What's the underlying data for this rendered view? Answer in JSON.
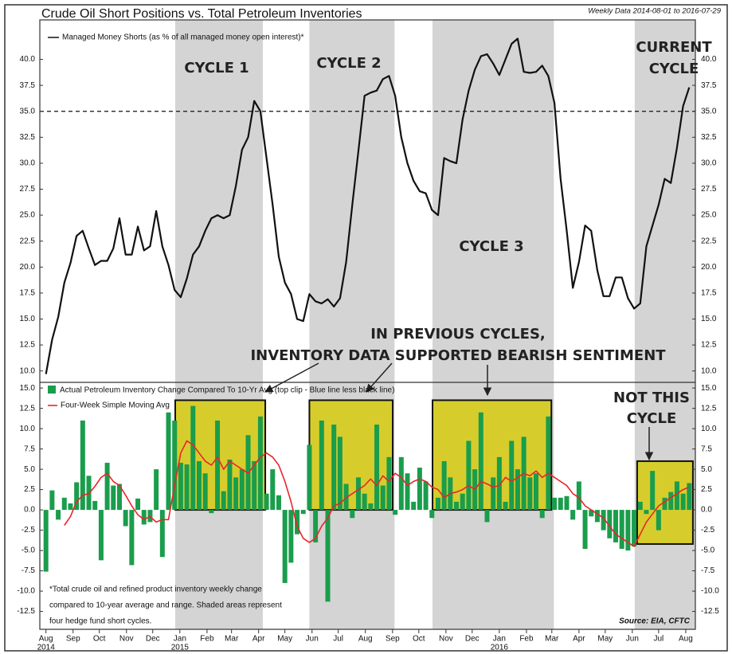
{
  "chart_data": [
    {
      "type": "line",
      "title": "Crude Oil Short Positions vs. Total Petroleum Inventories",
      "subtitle": "Weekly Data 2014-08-01 to 2016-07-29",
      "x": [
        0,
        1,
        2,
        3,
        4,
        5,
        6,
        7,
        8,
        9,
        10,
        11,
        12,
        13,
        14,
        15,
        16,
        17,
        18,
        19,
        20,
        21,
        22,
        23,
        24,
        25,
        26,
        27,
        28,
        29,
        30,
        31,
        32,
        33,
        34,
        35,
        36,
        37,
        38,
        39,
        40,
        41,
        42,
        43,
        44,
        45,
        46,
        47,
        48,
        49,
        50,
        51,
        52,
        53,
        54,
        55,
        56,
        57,
        58,
        59,
        60,
        61,
        62,
        63,
        64,
        65,
        66,
        67,
        68,
        69,
        70,
        71,
        72,
        73,
        74,
        75,
        76,
        77,
        78,
        79,
        80,
        81,
        82,
        83,
        84,
        85,
        86,
        87,
        88,
        89,
        90,
        91,
        92,
        93,
        94,
        95,
        96,
        97,
        98,
        99,
        100,
        101,
        102,
        103,
        104,
        105
      ],
      "xlim": [
        -1,
        106
      ],
      "ylim": [
        8.9,
        43.8
      ],
      "yticks": [
        {
          "value": 10,
          "label": "10.0"
        },
        12.5,
        {
          "value": 15,
          "label": "15.0"
        },
        17.5,
        {
          "value": 20,
          "label": "20.0"
        },
        22.5,
        {
          "value": 25,
          "label": "25.0"
        },
        27.5,
        {
          "value": 30,
          "label": "30.0"
        },
        32.5,
        {
          "value": 35,
          "label": "35.0"
        },
        37.5,
        {
          "value": 40,
          "label": "40.0"
        }
      ],
      "ref_line": 35,
      "shaded_x_ranges": [
        [
          21.1,
          35.4
        ],
        [
          43,
          56.9
        ],
        [
          63.1,
          82.9
        ],
        [
          96.1,
          106
        ]
      ],
      "series": [
        {
          "name": "Managed Money Shorts (as % of all managed money open interest)*",
          "color": "#111111",
          "values": [
            9.7,
            13.0,
            15.2,
            18.5,
            20.4,
            23.0,
            23.5,
            21.8,
            20.2,
            20.6,
            20.6,
            21.8,
            24.7,
            21.2,
            21.2,
            23.9,
            21.6,
            22.0,
            25.4,
            22.0,
            20.2,
            17.8,
            17.1,
            18.9,
            21.2,
            22.0,
            23.5,
            24.7,
            25.0,
            24.7,
            25.0,
            27.8,
            31.3,
            32.5,
            36.0,
            35.0,
            30.5,
            26.0,
            21.0,
            18.5,
            17.4,
            15.0,
            14.8,
            17.4,
            16.7,
            16.5,
            16.9,
            16.2,
            17.0,
            20.5,
            26.0,
            31.2,
            36.5,
            36.8,
            37.0,
            38.1,
            38.4,
            36.5,
            32.5,
            30.0,
            28.3,
            27.3,
            27.1,
            25.5,
            25.0,
            30.5,
            30.2,
            30.0,
            34.2,
            37.0,
            39.0,
            40.3,
            40.5,
            39.6,
            38.5,
            40.0,
            41.5,
            42.0,
            38.8,
            38.7,
            38.8,
            39.4,
            38.4,
            35.8,
            28.5,
            23.5,
            18.0,
            20.5,
            24.0,
            23.5,
            19.7,
            17.2,
            17.2,
            19.0,
            19.0,
            17.0,
            16.0,
            16.5,
            22.0,
            24.0,
            26.0,
            28.5,
            28.1,
            31.5,
            35.5,
            37.3
          ]
        }
      ],
      "annotations": [
        "CYCLE 1",
        "CYCLE 2",
        "CYCLE 3",
        "CURRENT",
        "CYCLE"
      ]
    },
    {
      "type": "bar",
      "x": [
        0,
        1,
        2,
        3,
        4,
        5,
        6,
        7,
        8,
        9,
        10,
        11,
        12,
        13,
        14,
        15,
        16,
        17,
        18,
        19,
        20,
        21,
        22,
        23,
        24,
        25,
        26,
        27,
        28,
        29,
        30,
        31,
        32,
        33,
        34,
        35,
        36,
        37,
        38,
        39,
        40,
        41,
        42,
        43,
        44,
        45,
        46,
        47,
        48,
        49,
        50,
        51,
        52,
        53,
        54,
        55,
        56,
        57,
        58,
        59,
        60,
        61,
        62,
        63,
        64,
        65,
        66,
        67,
        68,
        69,
        70,
        71,
        72,
        73,
        74,
        75,
        76,
        77,
        78,
        79,
        80,
        81,
        82,
        83,
        84,
        85,
        86,
        87,
        88,
        89,
        90,
        91,
        92,
        93,
        94,
        95,
        96,
        97,
        98,
        99,
        100,
        101,
        102,
        103,
        104,
        105
      ],
      "xlim": [
        -1,
        106
      ],
      "xticks": [
        {
          "value": 0,
          "label": "Aug"
        },
        {
          "value": 4.43,
          "label": "Sep"
        },
        {
          "value": 8.71,
          "label": "Oct"
        },
        {
          "value": 13.14,
          "label": "Nov"
        },
        {
          "value": 17.43,
          "label": "Dec"
        },
        {
          "value": 21.86,
          "label": "Jan"
        },
        {
          "value": 26.29,
          "label": "Feb"
        },
        {
          "value": 30.29,
          "label": "Mar"
        },
        {
          "value": 34.71,
          "label": "Apr"
        },
        {
          "value": 39,
          "label": "May"
        },
        {
          "value": 43.43,
          "label": "Jun"
        },
        {
          "value": 47.71,
          "label": "Jul"
        },
        {
          "value": 52.14,
          "label": "Aug"
        },
        {
          "value": 56.57,
          "label": "Sep"
        },
        {
          "value": 60.86,
          "label": "Oct"
        },
        {
          "value": 65.29,
          "label": "Nov"
        },
        {
          "value": 69.57,
          "label": "Dec"
        },
        {
          "value": 74,
          "label": "Jan"
        },
        {
          "value": 78.43,
          "label": "Feb"
        },
        {
          "value": 82.57,
          "label": "Mar"
        },
        {
          "value": 87,
          "label": "Apr"
        },
        {
          "value": 91.29,
          "label": "May"
        },
        {
          "value": 95.71,
          "label": "Jun"
        },
        {
          "value": 100,
          "label": "Jul"
        },
        {
          "value": 104.43,
          "label": "Aug"
        }
      ],
      "year_labels": [
        {
          "value": 0,
          "label": "2014"
        },
        {
          "value": 21.86,
          "label": "2015"
        },
        {
          "value": 74,
          "label": "2016"
        }
      ],
      "ylim": [
        -14.7,
        15.7
      ],
      "yticks": [
        {
          "value": 15,
          "label": "15.0"
        },
        12.5,
        {
          "value": 10,
          "label": "10.0"
        },
        7.5,
        {
          "value": 5,
          "label": "5.0"
        },
        2.5,
        {
          "value": 0,
          "label": "0.0"
        },
        -2.5,
        {
          "value": -5,
          "label": "-5.0"
        },
        -7.5,
        {
          "value": -10,
          "label": "-10.0"
        },
        -12.5
      ],
      "boxes": [
        {
          "x": [
            21.1,
            35.8
          ],
          "y": [
            0,
            13.5
          ]
        },
        {
          "x": [
            43,
            56.6
          ],
          "y": [
            0,
            13.5
          ]
        },
        {
          "x": [
            63.1,
            82.5
          ],
          "y": [
            0,
            13.5
          ]
        },
        {
          "x": [
            96.5,
            105.6
          ],
          "y": [
            -4.2,
            6.0
          ]
        }
      ],
      "series": [
        {
          "name": "Actual Petroleum Inventory Change Compared To 10-Yr Avg (top clip - Blue line less black line)",
          "type": "bar",
          "color": "#1a9d4c",
          "values": [
            -7.6,
            2.4,
            -1.2,
            1.5,
            0.8,
            3.4,
            11.0,
            4.2,
            1.1,
            -6.2,
            5.8,
            3.0,
            3.2,
            -2.0,
            -6.8,
            1.4,
            -1.8,
            -1.5,
            5.0,
            -5.8,
            12.0,
            11.0,
            5.8,
            5.6,
            12.8,
            6.0,
            4.5,
            -0.4,
            11.0,
            2.3,
            6.2,
            4.0,
            5.0,
            9.2,
            6.0,
            11.5,
            2.0,
            5.0,
            1.8,
            -9.0,
            -6.5,
            -3.0,
            -0.5,
            8.0,
            -4.0,
            11.0,
            -11.3,
            10.5,
            9.0,
            3.2,
            -1.0,
            4.0,
            2.0,
            0.8,
            10.5,
            3.0,
            6.5,
            -0.6,
            6.5,
            4.5,
            1.0,
            5.2,
            3.5,
            -1.0,
            1.5,
            6.0,
            4.0,
            1.0,
            2.0,
            8.5,
            5.0,
            12.0,
            -1.5,
            4.0,
            6.5,
            1.0,
            8.5,
            5.0,
            9.0,
            4.0,
            4.5,
            -1.0,
            11.5,
            1.5,
            1.5,
            1.7,
            -1.2,
            3.5,
            -4.8,
            -0.8,
            -1.5,
            -2.5,
            -3.5,
            -4.0,
            -4.8,
            -5.0,
            -4.5,
            1.0,
            -0.5,
            4.8,
            -2.5,
            1.5,
            2.2,
            3.5,
            2.0,
            3.3
          ]
        },
        {
          "name": "Four-Week Simple Moving Avg",
          "type": "line",
          "color": "#e8262a",
          "values": [
            null,
            null,
            null,
            -1.9,
            -0.8,
            1.0,
            1.8,
            2.0,
            2.9,
            4.0,
            4.5,
            3.5,
            3.0,
            1.8,
            0.5,
            -0.6,
            -1.2,
            -0.8,
            -1.5,
            -1.2,
            -1.2,
            3.0,
            7.0,
            8.5,
            8.0,
            7.0,
            6.0,
            5.5,
            6.5,
            5.0,
            6.0,
            5.5,
            5.0,
            4.5,
            5.5,
            6.5,
            7.0,
            6.5,
            5.5,
            3.5,
            1.0,
            -2.0,
            -3.5,
            -4.0,
            -3.5,
            -2.0,
            -1.0,
            0.5,
            0.8,
            1.5,
            2.0,
            2.5,
            3.0,
            3.8,
            3.0,
            4.2,
            3.5,
            4.5,
            4.0,
            3.0,
            3.5,
            3.8,
            3.5,
            2.8,
            2.5,
            1.5,
            2.0,
            2.2,
            2.5,
            3.0,
            2.5,
            3.5,
            3.2,
            2.8,
            3.0,
            4.0,
            3.5,
            4.0,
            4.5,
            4.2,
            4.8,
            4.0,
            4.5,
            4.0,
            3.5,
            3.0,
            2.0,
            1.5,
            0.5,
            0.0,
            -0.5,
            -1.0,
            -2.0,
            -3.0,
            -3.5,
            -4.0,
            -4.5,
            -3.0,
            -1.5,
            -0.5,
            0.5,
            1.0,
            1.5,
            2.0,
            2.5,
            2.8
          ]
        }
      ],
      "annotations": [
        "IN PREVIOUS CYCLES,",
        "INVENTORY DATA SUPPORTED BEARISH SENTIMENT",
        "NOT THIS",
        "CYCLE"
      ],
      "note": [
        "*Total crude oil and refined product inventory weekly change",
        "compared to 10-year average and range. Shaded areas represent",
        "four hedge fund short cycles."
      ],
      "source": "Source: EIA, CFTC"
    }
  ]
}
